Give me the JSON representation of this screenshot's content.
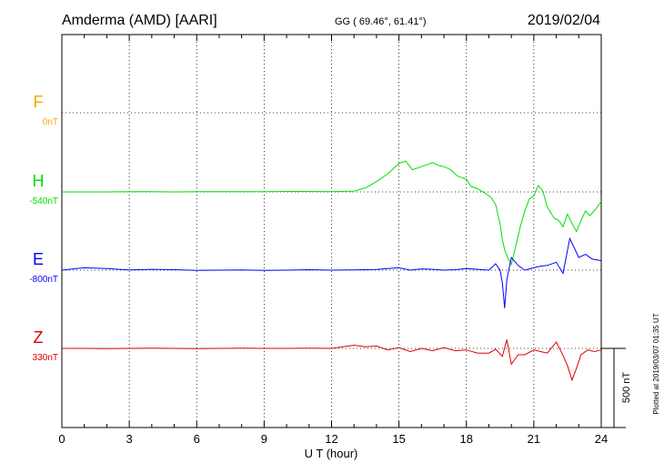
{
  "header": {
    "station": "Amderma (AMD)  [AARI]",
    "coords": "GG ( 69.46°,  61.41°)",
    "date": "2019/02/04"
  },
  "footer": {
    "plotted": "Plotted at 2019/03/07 01:35 UT"
  },
  "chart_data": {
    "type": "line",
    "xlabel": "U T (hour)",
    "xlim": [
      0,
      24
    ],
    "xticks": [
      0,
      3,
      6,
      9,
      12,
      15,
      18,
      21,
      24
    ],
    "scale_label": "500 nT",
    "scale_nT": 500,
    "grid": true,
    "series": [
      {
        "name": "F",
        "baseline_label": "0nT",
        "color": "#ffa500",
        "x": [],
        "y": []
      },
      {
        "name": "H",
        "baseline_label": "-540nT",
        "color": "#00e000",
        "x": [
          0,
          1,
          2,
          3,
          4,
          5,
          6,
          7,
          8,
          9,
          10,
          11,
          12,
          13,
          13.5,
          14,
          14.5,
          15,
          15.3,
          15.6,
          16,
          16.5,
          16.8,
          17,
          17.3,
          17.6,
          18,
          18.2,
          18.5,
          18.8,
          19.1,
          19.3,
          19.5,
          19.6,
          19.7,
          19.85,
          20,
          20.2,
          20.4,
          20.6,
          20.8,
          21,
          21.2,
          21.4,
          21.6,
          21.9,
          22.1,
          22.3,
          22.5,
          22.7,
          22.9,
          23.1,
          23.3,
          23.5,
          23.8,
          24
        ],
        "y": [
          -540,
          -540,
          -540,
          -538,
          -539,
          -540,
          -539,
          -538,
          -538,
          -538,
          -537,
          -537,
          -538,
          -535,
          -515,
          -475,
          -425,
          -360,
          -345,
          -400,
          -380,
          -355,
          -375,
          -380,
          -400,
          -440,
          -460,
          -505,
          -520,
          -545,
          -575,
          -620,
          -745,
          -840,
          -905,
          -960,
          -1000,
          -880,
          -760,
          -660,
          -585,
          -565,
          -500,
          -535,
          -635,
          -705,
          -720,
          -760,
          -680,
          -740,
          -790,
          -720,
          -660,
          -690,
          -640,
          -600
        ]
      },
      {
        "name": "E",
        "baseline_label": "-800nT",
        "color": "#0000ff",
        "x": [
          0,
          1,
          2,
          3,
          4,
          5,
          6,
          7,
          8,
          9,
          10,
          11,
          12,
          13,
          14,
          14.5,
          15,
          15.5,
          16,
          16.5,
          17,
          17.5,
          18,
          18.5,
          19,
          19.3,
          19.5,
          19.6,
          19.7,
          19.8,
          20,
          20.3,
          20.6,
          21,
          21.3,
          21.6,
          22,
          22.3,
          22.6,
          22.8,
          23,
          23.3,
          23.6,
          24
        ],
        "y": [
          -800,
          -785,
          -790,
          -798,
          -795,
          -797,
          -802,
          -800,
          -798,
          -802,
          -800,
          -797,
          -800,
          -798,
          -796,
          -790,
          -785,
          -800,
          -792,
          -795,
          -800,
          -797,
          -790,
          -795,
          -800,
          -760,
          -800,
          -880,
          -1040,
          -860,
          -720,
          -770,
          -800,
          -785,
          -775,
          -770,
          -750,
          -820,
          -600,
          -660,
          -720,
          -700,
          -730,
          -740
        ]
      },
      {
        "name": "Z",
        "baseline_label": "330nT",
        "color": "#e00000",
        "x": [
          0,
          1,
          2,
          3,
          4,
          5,
          6,
          7,
          8,
          9,
          10,
          11,
          12,
          12.5,
          13,
          13.5,
          14,
          14.5,
          15,
          15.5,
          16,
          16.5,
          17,
          17.5,
          18,
          18.5,
          19,
          19.3,
          19.6,
          19.8,
          20,
          20.3,
          20.6,
          21,
          21.3,
          21.6,
          22,
          22.3,
          22.5,
          22.7,
          22.9,
          23.1,
          23.4,
          23.7,
          24
        ],
        "y": [
          330,
          330,
          329,
          330,
          331,
          330,
          329,
          330,
          331,
          330,
          330,
          331,
          330,
          340,
          350,
          340,
          345,
          320,
          335,
          310,
          330,
          315,
          335,
          315,
          320,
          300,
          300,
          325,
          280,
          385,
          230,
          290,
          290,
          320,
          310,
          300,
          370,
          285,
          220,
          130,
          205,
          290,
          320,
          310,
          320
        ]
      }
    ]
  }
}
